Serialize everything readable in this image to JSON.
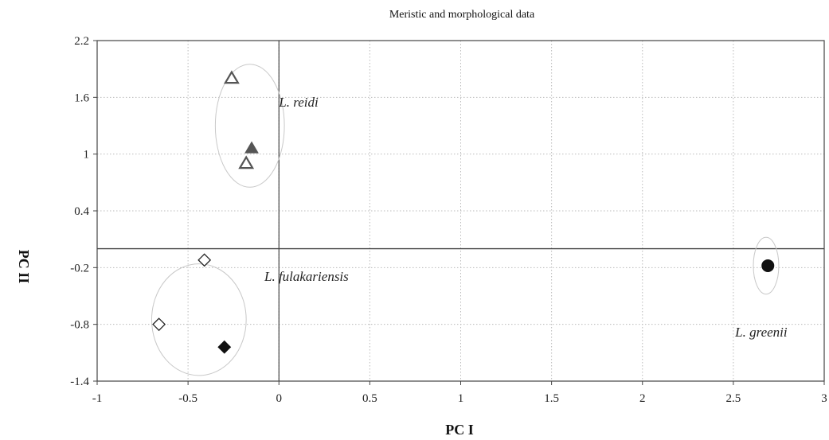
{
  "chart_data": {
    "type": "scatter",
    "title": "Meristic and morphological data",
    "xlabel": "PC I",
    "ylabel": "PC II",
    "xlim": [
      -1,
      3
    ],
    "ylim": [
      -1.4,
      2.2
    ],
    "x_ticks": [
      -1,
      -0.5,
      0,
      0.5,
      1,
      1.5,
      2,
      2.5,
      3
    ],
    "x_tick_labels": [
      "-1",
      "-0.5",
      "0",
      "0.5",
      "1",
      "1.5",
      "2",
      "2.5",
      "3"
    ],
    "y_ticks": [
      -1.4,
      -0.8,
      -0.2,
      0.4,
      1,
      1.6,
      2.2
    ],
    "y_tick_labels": [
      "-1.4",
      "-0.8",
      "-0.2",
      "0.4",
      "1",
      "1.6",
      "2.2"
    ],
    "grid": true,
    "reference_lines": {
      "x": 0,
      "y": 0
    },
    "groups": [
      {
        "name": "L. reidi",
        "ellipse": {
          "cx": -0.16,
          "cy": 1.3,
          "rx": 0.19,
          "ry": 0.65
        },
        "points": [
          {
            "x": -0.26,
            "y": 1.8,
            "marker": "triangle-open",
            "color": "#555555"
          },
          {
            "x": -0.15,
            "y": 1.06,
            "marker": "triangle-filled",
            "color": "#555555"
          },
          {
            "x": -0.18,
            "y": 0.9,
            "marker": "triangle-open",
            "color": "#555555"
          }
        ]
      },
      {
        "name": "L. fulakariensis",
        "ellipse": {
          "cx": -0.44,
          "cy": -0.75,
          "rx": 0.26,
          "ry": 0.59
        },
        "points": [
          {
            "x": -0.41,
            "y": -0.12,
            "marker": "diamond-open",
            "color": "#222222"
          },
          {
            "x": -0.66,
            "y": -0.8,
            "marker": "diamond-open",
            "color": "#222222"
          },
          {
            "x": -0.3,
            "y": -1.04,
            "marker": "diamond-filled",
            "color": "#111111"
          }
        ]
      },
      {
        "name": "L. greenii",
        "ellipse": {
          "cx": 2.68,
          "cy": -0.18,
          "rx": 0.07,
          "ry": 0.3
        },
        "points": [
          {
            "x": 2.69,
            "y": -0.18,
            "marker": "circle-filled",
            "color": "#111111"
          }
        ]
      }
    ],
    "group_label_positions": {
      "L. reidi": {
        "x": 0.0,
        "y": 1.5
      },
      "L. fulakariensis": {
        "x": -0.08,
        "y": -0.34
      },
      "L. greenii": {
        "x": 2.51,
        "y": -0.93
      }
    }
  }
}
